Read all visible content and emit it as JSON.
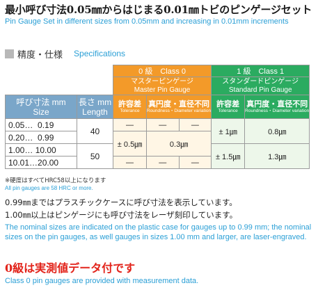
{
  "header": {
    "title_jp": "最小呼び寸法0.05㎜からはじまる0.01㎜トビのピンゲージセット",
    "title_en": "Pin Gauge Set in different sizes from 0.05mm and increasing in 0.01mm increments"
  },
  "spec_section": {
    "title_jp": "精度・仕様",
    "title_en": "Specifications"
  },
  "table": {
    "size_label_jp": "呼び寸法 mm",
    "size_label_en": "Size",
    "length_label_jp": "長さ mm",
    "length_label_en": "Length",
    "class0": {
      "title": "0 級　Class 0",
      "subtitle_jp": "マスターピンゲージ",
      "subtitle_en": "Master Pin Gauge",
      "tolerance_jp": "許容差",
      "tolerance_en": "Tolerance",
      "roundness_jp": "真円度・直径不同",
      "roundness_en": "Roundness・Diameter variation"
    },
    "class1": {
      "title": "1 級　Class 1",
      "subtitle_jp": "スタンダードピンゲージ",
      "subtitle_en": "Standard Pin Gauge",
      "tolerance_jp": "許容差",
      "tolerance_en": "Tolerance",
      "roundness_jp": "真円度・直径不同",
      "roundness_en": "Roundness・Diameter variation"
    },
    "rows": [
      {
        "size_from": "0.05",
        "size_to": "0.19"
      },
      {
        "size_from": "0.20",
        "size_to": "0.99"
      },
      {
        "size_from": "1.00",
        "size_to": "10.00"
      },
      {
        "size_from": "10.01",
        "size_to": "20.00"
      }
    ],
    "lengths": [
      "40",
      "50"
    ],
    "c0_tolerance": [
      "—",
      "± 0.5㎛",
      "—"
    ],
    "c0_roundness": [
      "—",
      "0.3㎛",
      "—"
    ],
    "c0_extra": [
      "—",
      "—"
    ],
    "c1_tolerance": [
      "± 1㎛",
      "± 1.5㎛"
    ],
    "c1_roundness": [
      "0.8㎛",
      "1.3㎛"
    ],
    "dash": "…"
  },
  "notes": {
    "hardness_jp": "※硬度はすべてHRC58以上になります",
    "hardness_en": "All pin gauges are 58 HRC or more.",
    "body_jp1": "0.99㎜まではプラスチックケースに呼び寸法を表示しています。",
    "body_jp2": "1.00㎜以上はピンゲージにも呼び寸法をレーザ刻印しています。",
    "body_en": "The nominal sizes are indicated on the plastic case for gauges up to 0.99 mm; the nominal sizes on the pin gauges, as well gauges in sizes 1.00 mm and larger, are laser-engraved.",
    "class0_jp": "0級は実測値データ付です",
    "class0_en": "Class 0 pin gauges are provided with measurement data."
  },
  "colors": {
    "accent_blue": "#2a9fd6",
    "header_blue": "#7aa6c9",
    "class0_orange": "#f39a29",
    "class1_green": "#2bab60",
    "highlight_red": "#e2231a"
  }
}
